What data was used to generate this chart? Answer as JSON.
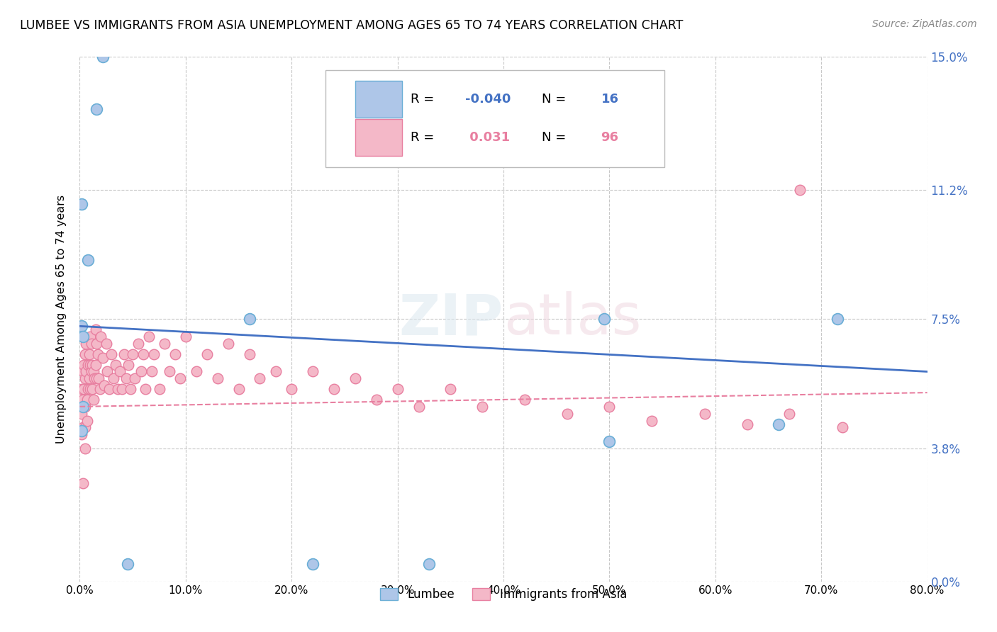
{
  "title": "LUMBEE VS IMMIGRANTS FROM ASIA UNEMPLOYMENT AMONG AGES 65 TO 74 YEARS CORRELATION CHART",
  "source": "Source: ZipAtlas.com",
  "ylabel": "Unemployment Among Ages 65 to 74 years",
  "lumbee_color": "#aec6e8",
  "lumbee_edge_color": "#6aaed6",
  "asia_color": "#f4b8c8",
  "asia_edge_color": "#e87fa0",
  "lumbee_line_color": "#4472c4",
  "asia_line_color": "#e87fa0",
  "lumbee_R": -0.04,
  "lumbee_N": 16,
  "asia_R": 0.031,
  "asia_N": 96,
  "lumbee_x": [
    0.002,
    0.002,
    0.002,
    0.003,
    0.003,
    0.008,
    0.016,
    0.022,
    0.045,
    0.16,
    0.22,
    0.33,
    0.5,
    0.66,
    0.715,
    0.495
  ],
  "lumbee_y": [
    0.108,
    0.073,
    0.043,
    0.07,
    0.05,
    0.092,
    0.135,
    0.15,
    0.005,
    0.075,
    0.005,
    0.005,
    0.04,
    0.045,
    0.075,
    0.075
  ],
  "asia_x": [
    0.002,
    0.002,
    0.002,
    0.003,
    0.003,
    0.003,
    0.004,
    0.004,
    0.005,
    0.005,
    0.005,
    0.005,
    0.005,
    0.006,
    0.006,
    0.007,
    0.007,
    0.008,
    0.008,
    0.009,
    0.009,
    0.01,
    0.01,
    0.01,
    0.011,
    0.011,
    0.012,
    0.012,
    0.013,
    0.013,
    0.014,
    0.015,
    0.015,
    0.016,
    0.016,
    0.017,
    0.018,
    0.019,
    0.02,
    0.022,
    0.023,
    0.025,
    0.026,
    0.028,
    0.03,
    0.032,
    0.034,
    0.036,
    0.038,
    0.04,
    0.042,
    0.044,
    0.046,
    0.048,
    0.05,
    0.052,
    0.055,
    0.058,
    0.06,
    0.062,
    0.065,
    0.068,
    0.07,
    0.075,
    0.08,
    0.085,
    0.09,
    0.095,
    0.1,
    0.11,
    0.12,
    0.13,
    0.14,
    0.15,
    0.16,
    0.17,
    0.185,
    0.2,
    0.22,
    0.24,
    0.26,
    0.28,
    0.3,
    0.32,
    0.35,
    0.38,
    0.42,
    0.46,
    0.5,
    0.54,
    0.59,
    0.63,
    0.67,
    0.72,
    0.68,
    0.003
  ],
  "asia_y": [
    0.055,
    0.048,
    0.042,
    0.06,
    0.052,
    0.044,
    0.062,
    0.055,
    0.065,
    0.058,
    0.05,
    0.044,
    0.038,
    0.068,
    0.06,
    0.052,
    0.046,
    0.062,
    0.055,
    0.065,
    0.058,
    0.07,
    0.062,
    0.055,
    0.068,
    0.06,
    0.062,
    0.055,
    0.06,
    0.052,
    0.058,
    0.072,
    0.062,
    0.068,
    0.058,
    0.065,
    0.058,
    0.055,
    0.07,
    0.064,
    0.056,
    0.068,
    0.06,
    0.055,
    0.065,
    0.058,
    0.062,
    0.055,
    0.06,
    0.055,
    0.065,
    0.058,
    0.062,
    0.055,
    0.065,
    0.058,
    0.068,
    0.06,
    0.065,
    0.055,
    0.07,
    0.06,
    0.065,
    0.055,
    0.068,
    0.06,
    0.065,
    0.058,
    0.07,
    0.06,
    0.065,
    0.058,
    0.068,
    0.055,
    0.065,
    0.058,
    0.06,
    0.055,
    0.06,
    0.055,
    0.058,
    0.052,
    0.055,
    0.05,
    0.055,
    0.05,
    0.052,
    0.048,
    0.05,
    0.046,
    0.048,
    0.045,
    0.048,
    0.044,
    0.112,
    0.028
  ],
  "watermark": "ZIPatlas",
  "background_color": "#ffffff",
  "grid_color": "#c8c8c8",
  "xlim": [
    0.0,
    0.8
  ],
  "ylim": [
    0.0,
    0.15
  ],
  "xtick_vals": [
    0.0,
    0.1,
    0.2,
    0.3,
    0.4,
    0.5,
    0.6,
    0.7,
    0.8
  ],
  "xtick_labels": [
    "0.0%",
    "10.0%",
    "20.0%",
    "30.0%",
    "40.0%",
    "50.0%",
    "60.0%",
    "70.0%",
    "80.0%"
  ],
  "ytick_vals": [
    0.0,
    0.038,
    0.075,
    0.112,
    0.15
  ],
  "ytick_labels": [
    "0.0%",
    "3.8%",
    "7.5%",
    "11.2%",
    "15.0%"
  ],
  "lumbee_trend_x": [
    0.0,
    0.8
  ],
  "lumbee_trend_y": [
    0.073,
    0.06
  ],
  "asia_trend_x": [
    0.0,
    0.8
  ],
  "asia_trend_y": [
    0.05,
    0.054
  ]
}
